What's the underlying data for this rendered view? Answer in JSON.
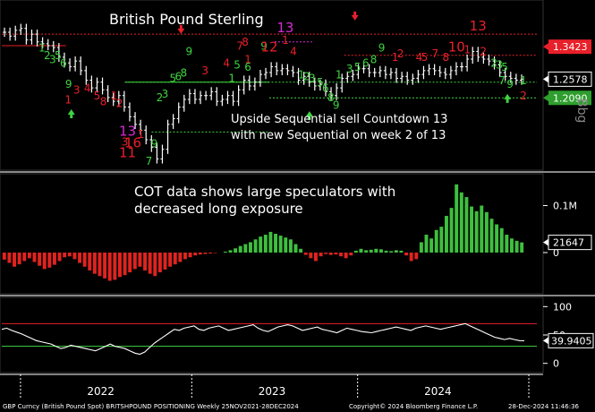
{
  "chart_data": [
    {
      "type": "bar",
      "panel": "price",
      "title": "British Pound Sterling",
      "annotation": "Upside Sequential sell Countdown 13 with new Sequential on week 2 of 13",
      "ylim": [
        1.03,
        1.45
      ],
      "series": [
        {
          "values": [
            1.38,
            1.37,
            1.385,
            1.39,
            1.36,
            1.375,
            1.355,
            1.35,
            1.345,
            1.34,
            1.315,
            1.3,
            1.29,
            1.305,
            1.28,
            1.255,
            1.235,
            1.25,
            1.23,
            1.21,
            1.2,
            1.215,
            1.185,
            1.16,
            1.14,
            1.125,
            1.1,
            1.08,
            1.05,
            1.075,
            1.14,
            1.155,
            1.185,
            1.205,
            1.22,
            1.205,
            1.215,
            1.215,
            1.225,
            1.2,
            1.205,
            1.215,
            1.2,
            1.23,
            1.255,
            1.24,
            1.25,
            1.27,
            1.275,
            1.29,
            1.28,
            1.285,
            1.28,
            1.275,
            1.255,
            1.265,
            1.25,
            1.24,
            1.245,
            1.225,
            1.215,
            1.235,
            1.26,
            1.265,
            1.27,
            1.285,
            1.285,
            1.275,
            1.275,
            1.28,
            1.27,
            1.275,
            1.26,
            1.265,
            1.255,
            1.26,
            1.27,
            1.28,
            1.285,
            1.28,
            1.275,
            1.27,
            1.28,
            1.29,
            1.29,
            1.31,
            1.33,
            1.315,
            1.31,
            1.305,
            1.295,
            1.275,
            1.265,
            1.26,
            1.255,
            1.258
          ]
        }
      ],
      "price_labels": [
        {
          "text": "1.3423",
          "value": 1.3423,
          "color": "#e8202a"
        },
        {
          "text": "1.2578",
          "value": 1.2578,
          "color": "#000000"
        },
        {
          "text": "1.2090",
          "value": 1.209,
          "color": "#2e9e2e"
        }
      ],
      "setup_labels": [
        {
          "text": "1",
          "x": 0.075,
          "y": 1.33,
          "color": "#3fd43f"
        },
        {
          "text": "2",
          "x": 0.085,
          "y": 1.31,
          "color": "#3fd43f"
        },
        {
          "text": "3",
          "x": 0.095,
          "y": 1.3,
          "color": "#3fd43f"
        },
        {
          "text": "5",
          "x": 0.105,
          "y": 1.31,
          "color": "#3fd43f"
        },
        {
          "text": "6",
          "x": 0.115,
          "y": 1.29,
          "color": "#3fd43f"
        },
        {
          "text": "9",
          "x": 0.125,
          "y": 1.235,
          "color": "#3fd43f"
        },
        {
          "text": "1",
          "x": 0.124,
          "y": 1.195,
          "color": "#e8202a"
        },
        {
          "text": "3",
          "x": 0.14,
          "y": 1.22,
          "color": "#e8202a"
        },
        {
          "text": "4",
          "x": 0.16,
          "y": 1.225,
          "color": "#e8202a"
        },
        {
          "text": "5",
          "x": 0.178,
          "y": 1.205,
          "color": "#e8202a"
        },
        {
          "text": "8",
          "x": 0.19,
          "y": 1.19,
          "color": "#e8202a"
        },
        {
          "text": "1",
          "x": 0.21,
          "y": 1.205,
          "color": "#e8202a"
        },
        {
          "text": "2",
          "x": 0.22,
          "y": 1.185,
          "color": "#e8202a"
        },
        {
          "text": "13",
          "x": 0.235,
          "y": 1.11,
          "color": "#d52ad5"
        },
        {
          "text": "1",
          "x": 0.26,
          "y": 1.105,
          "color": "#e8202a"
        },
        {
          "text": "3",
          "x": 0.23,
          "y": 1.085,
          "color": "#e8202a"
        },
        {
          "text": "16",
          "x": 0.245,
          "y": 1.08,
          "color": "#e8202a"
        },
        {
          "text": "11",
          "x": 0.235,
          "y": 1.055,
          "color": "#e8202a"
        },
        {
          "text": "9",
          "x": 0.285,
          "y": 1.08,
          "color": "#3fd43f"
        },
        {
          "text": "7",
          "x": 0.275,
          "y": 1.035,
          "color": "#3fd43f"
        },
        {
          "text": "2",
          "x": 0.295,
          "y": 1.2,
          "color": "#3fd43f"
        },
        {
          "text": "3",
          "x": 0.305,
          "y": 1.21,
          "color": "#3fd43f"
        },
        {
          "text": "5",
          "x": 0.32,
          "y": 1.25,
          "color": "#3fd43f"
        },
        {
          "text": "6",
          "x": 0.33,
          "y": 1.255,
          "color": "#3fd43f"
        },
        {
          "text": "8",
          "x": 0.34,
          "y": 1.265,
          "color": "#3fd43f"
        },
        {
          "text": "9",
          "x": 0.35,
          "y": 1.32,
          "color": "#3fd43f"
        },
        {
          "text": "3",
          "x": 0.38,
          "y": 1.27,
          "color": "#e8202a"
        },
        {
          "text": "4",
          "x": 0.42,
          "y": 1.29,
          "color": "#e8202a"
        },
        {
          "text": "1",
          "x": 0.43,
          "y": 1.25,
          "color": "#3fd43f"
        },
        {
          "text": "7",
          "x": 0.445,
          "y": 1.335,
          "color": "#e8202a"
        },
        {
          "text": "8",
          "x": 0.455,
          "y": 1.345,
          "color": "#e8202a"
        },
        {
          "text": "1",
          "x": 0.46,
          "y": 1.3,
          "color": "#e8202a"
        },
        {
          "text": "5",
          "x": 0.44,
          "y": 1.285,
          "color": "#3fd43f"
        },
        {
          "text": "6",
          "x": 0.46,
          "y": 1.28,
          "color": "#3fd43f"
        },
        {
          "text": "9",
          "x": 0.49,
          "y": 1.335,
          "color": "#3fd43f"
        },
        {
          "text": "12",
          "x": 0.5,
          "y": 1.33,
          "color": "#e8202a"
        },
        {
          "text": "13",
          "x": 0.53,
          "y": 1.38,
          "color": "#d52ad5"
        },
        {
          "text": "1",
          "x": 0.53,
          "y": 1.35,
          "color": "#e8202a"
        },
        {
          "text": "4",
          "x": 0.545,
          "y": 1.32,
          "color": "#e8202a"
        },
        {
          "text": "1",
          "x": 0.56,
          "y": 1.26,
          "color": "#3fd43f"
        },
        {
          "text": "2",
          "x": 0.57,
          "y": 1.255,
          "color": "#3fd43f"
        },
        {
          "text": "3",
          "x": 0.58,
          "y": 1.25,
          "color": "#3fd43f"
        },
        {
          "text": "5",
          "x": 0.595,
          "y": 1.24,
          "color": "#3fd43f"
        },
        {
          "text": "6",
          "x": 0.605,
          "y": 1.225,
          "color": "#3fd43f"
        },
        {
          "text": "8",
          "x": 0.615,
          "y": 1.2,
          "color": "#3fd43f"
        },
        {
          "text": "9",
          "x": 0.625,
          "y": 1.18,
          "color": "#3fd43f"
        },
        {
          "text": "1",
          "x": 0.63,
          "y": 1.26,
          "color": "#3fd43f"
        },
        {
          "text": "3",
          "x": 0.65,
          "y": 1.275,
          "color": "#3fd43f"
        },
        {
          "text": "5",
          "x": 0.665,
          "y": 1.28,
          "color": "#3fd43f"
        },
        {
          "text": "6",
          "x": 0.68,
          "y": 1.29,
          "color": "#3fd43f"
        },
        {
          "text": "8",
          "x": 0.695,
          "y": 1.3,
          "color": "#3fd43f"
        },
        {
          "text": "9",
          "x": 0.71,
          "y": 1.33,
          "color": "#3fd43f"
        },
        {
          "text": "1",
          "x": 0.735,
          "y": 1.305,
          "color": "#e8202a"
        },
        {
          "text": "2",
          "x": 0.745,
          "y": 1.315,
          "color": "#e8202a"
        },
        {
          "text": "4",
          "x": 0.78,
          "y": 1.305,
          "color": "#e8202a"
        },
        {
          "text": "5",
          "x": 0.79,
          "y": 1.305,
          "color": "#e8202a"
        },
        {
          "text": "7",
          "x": 0.81,
          "y": 1.315,
          "color": "#e8202a"
        },
        {
          "text": "8",
          "x": 0.83,
          "y": 1.305,
          "color": "#e8202a"
        },
        {
          "text": "10",
          "x": 0.85,
          "y": 1.33,
          "color": "#e8202a"
        },
        {
          "text": "13",
          "x": 0.89,
          "y": 1.385,
          "color": "#e8202a"
        },
        {
          "text": "2",
          "x": 0.9,
          "y": 1.32,
          "color": "#e8202a"
        },
        {
          "text": "1",
          "x": 0.87,
          "y": 1.325,
          "color": "#e8202a"
        },
        {
          "text": "2",
          "x": 0.92,
          "y": 1.29,
          "color": "#3fd43f"
        },
        {
          "text": "3",
          "x": 0.93,
          "y": 1.285,
          "color": "#3fd43f"
        },
        {
          "text": "5",
          "x": 0.94,
          "y": 1.28,
          "color": "#3fd43f"
        },
        {
          "text": "7",
          "x": 0.935,
          "y": 1.245,
          "color": "#3fd43f"
        },
        {
          "text": "9",
          "x": 0.95,
          "y": 1.235,
          "color": "#3fd43f"
        },
        {
          "text": "1",
          "x": 0.975,
          "y": 1.245,
          "color": "#3fd43f"
        },
        {
          "text": "2",
          "x": 0.975,
          "y": 1.205,
          "color": "#e8202a"
        }
      ],
      "arrows": [
        {
          "direction": "up",
          "x": 0.13,
          "y": 1.17,
          "color": "#3fd43f"
        },
        {
          "direction": "down",
          "x": 0.335,
          "y": 1.385,
          "color": "#e8202a"
        },
        {
          "direction": "up",
          "x": 0.575,
          "y": 1.165,
          "color": "#3fd43f"
        },
        {
          "direction": "down",
          "x": 0.66,
          "y": 1.42,
          "color": "#e8202a"
        },
        {
          "direction": "up",
          "x": 0.945,
          "y": 1.21,
          "color": "#3fd43f"
        }
      ],
      "trend_lines": [
        {
          "x_from": 0.0,
          "x_to": 1.0,
          "value": 1.375,
          "color": "#e8202a",
          "style": "dotted"
        },
        {
          "x_from": 0.0,
          "x_to": 0.12,
          "value": 1.345,
          "color": "#e8202a",
          "style": "solid"
        },
        {
          "x_from": 0.23,
          "x_to": 1.0,
          "value": 1.25,
          "color": "#3fd43f",
          "style": "dotted"
        },
        {
          "x_from": 0.23,
          "x_to": 0.5,
          "value": 1.25,
          "color": "#3fd43f",
          "style": "solid"
        },
        {
          "x_from": 0.5,
          "x_to": 1.0,
          "value": 1.209,
          "color": "#3fd43f",
          "style": "dotted"
        },
        {
          "x_from": 0.28,
          "x_to": 0.5,
          "value": 1.12,
          "color": "#3fd43f",
          "style": "dotted"
        },
        {
          "x_from": 0.51,
          "x_to": 0.58,
          "value": 1.355,
          "color": "#d52ad5",
          "style": "dotted"
        },
        {
          "x_from": 0.64,
          "x_to": 1.0,
          "value": 1.32,
          "color": "#e8202a",
          "style": "dotted"
        }
      ]
    },
    {
      "type": "bar",
      "panel": "positioning",
      "title": "COT data shows large speculators with decreased long exposure",
      "y_ticks": [
        {
          "value": 100000,
          "label": "0.1M"
        },
        {
          "value": 0,
          "label": "0"
        }
      ],
      "current_value_label": "21647",
      "current_value": 21647,
      "ylim": [
        -80000,
        160000
      ],
      "series": [
        {
          "values": [
            -15000,
            -22000,
            -30000,
            -25000,
            -18000,
            -12000,
            -20000,
            -28000,
            -35000,
            -32000,
            -26000,
            -18000,
            -10000,
            -8000,
            -14000,
            -22000,
            -30000,
            -38000,
            -45000,
            -50000,
            -55000,
            -60000,
            -58000,
            -52000,
            -48000,
            -42000,
            -35000,
            -30000,
            -38000,
            -45000,
            -50000,
            -42000,
            -36000,
            -30000,
            -25000,
            -20000,
            -14000,
            -10000,
            -6000,
            -4000,
            -3000,
            -2000,
            -1000,
            0,
            2000,
            5000,
            9000,
            14000,
            18000,
            22000,
            28000,
            34000,
            38000,
            44000,
            40000,
            36000,
            32000,
            28000,
            18000,
            8000,
            -5000,
            -12000,
            -18000,
            -8000,
            -3000,
            -5000,
            -4000,
            -8000,
            -12000,
            -6000,
            4000,
            8000,
            5000,
            6000,
            8000,
            7000,
            4000,
            3000,
            5000,
            4000,
            -6000,
            -18000,
            -14000,
            22000,
            38000,
            30000,
            48000,
            55000,
            78000,
            95000,
            145000,
            128000,
            118000,
            98000,
            88000,
            100000,
            86000,
            72000,
            60000,
            52000,
            38000,
            30000,
            25000,
            21647
          ]
        }
      ]
    },
    {
      "type": "line",
      "panel": "indicator",
      "y_ticks": [
        {
          "value": 100,
          "label": "100"
        },
        {
          "value": 50,
          "label": "50"
        },
        {
          "value": 0,
          "label": "0"
        }
      ],
      "current_value_label": "39.9405",
      "current_value": 39.9405,
      "ylim": [
        -10,
        110
      ],
      "overbought": 70,
      "oversold": 30,
      "series": [
        {
          "values": [
            60,
            62,
            58,
            55,
            52,
            48,
            44,
            40,
            38,
            36,
            34,
            30,
            26,
            28,
            32,
            30,
            28,
            26,
            24,
            22,
            26,
            30,
            34,
            30,
            28,
            26,
            22,
            18,
            16,
            20,
            28,
            36,
            42,
            48,
            54,
            60,
            58,
            62,
            64,
            66,
            60,
            58,
            62,
            64,
            66,
            62,
            58,
            60,
            62,
            64,
            66,
            68,
            62,
            58,
            56,
            60,
            64,
            66,
            68,
            66,
            62,
            58,
            60,
            62,
            64,
            60,
            58,
            56,
            54,
            58,
            62,
            60,
            58,
            56,
            55,
            54,
            56,
            58,
            60,
            62,
            64,
            62,
            60,
            58,
            62,
            64,
            66,
            64,
            62,
            60,
            62,
            64,
            66,
            68,
            70,
            66,
            62,
            58,
            54,
            50,
            46,
            44,
            42,
            44,
            42,
            40,
            39.9405
          ]
        }
      ]
    }
  ],
  "x_axis": {
    "ticks": [
      "2022",
      "2023",
      "2024"
    ]
  },
  "side_label": "Bbg",
  "footer": {
    "left": "GBP Curncy (British Pound Spot) BRITSHPOUND POSITIONING  Weekly 25NOV2021-28DEC2024",
    "middle": "Copyright© 2024 Bloomberg Finance L.P.",
    "right": "28-Dec-2024 11:46:36"
  },
  "colors": {
    "price_bar": "#ffffff",
    "pos_bar": "#3fbf3f",
    "neg_bar": "#e0231f",
    "indicator_line": "#ffffff",
    "overbought_line": "#e8202a",
    "oversold_line": "#3fd43f",
    "background": "#000000"
  }
}
